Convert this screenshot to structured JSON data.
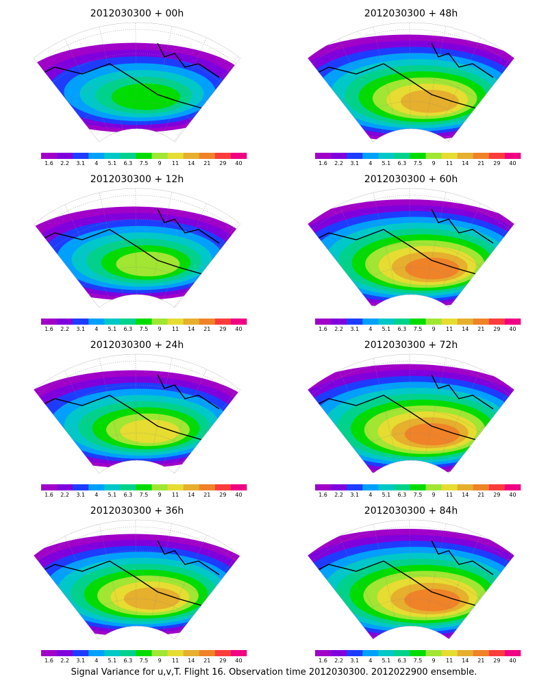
{
  "caption": "Signal Variance for u,v,T. Flight 16. Observation time 2012030300. 2012022900 ensemble.",
  "colorbar": {
    "labels": [
      "1.6",
      "2.2",
      "3.1",
      "4",
      "5.1",
      "6.3",
      "7.5",
      "9",
      "11",
      "14",
      "21",
      "29",
      "40"
    ],
    "colors": [
      "#a000c8",
      "#7f00dc",
      "#1e3cff",
      "#00a0ff",
      "#00c8c8",
      "#00d28c",
      "#00dc00",
      "#a0e632",
      "#e6dc32",
      "#e6af2d",
      "#f08228",
      "#fa3c3c",
      "#f00082"
    ]
  },
  "panels": [
    {
      "title": "2012030300 + 00h",
      "intensity": 0.35
    },
    {
      "title": "2012030300 + 48h",
      "intensity": 0.75
    },
    {
      "title": "2012030300 + 12h",
      "intensity": 0.45
    },
    {
      "title": "2012030300 + 60h",
      "intensity": 0.8
    },
    {
      "title": "2012030300 + 24h",
      "intensity": 0.55
    },
    {
      "title": "2012030300 + 72h",
      "intensity": 0.85
    },
    {
      "title": "2012030300 + 36h",
      "intensity": 0.65
    },
    {
      "title": "2012030300 + 84h",
      "intensity": 0.9
    }
  ]
}
